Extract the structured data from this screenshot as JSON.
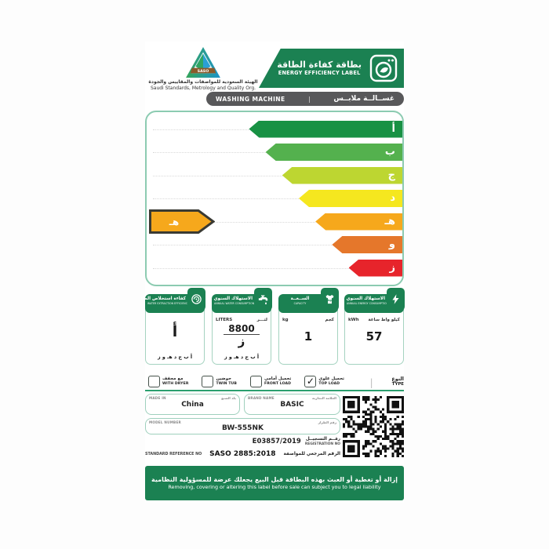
{
  "header": {
    "logo_text": "SASO",
    "org_name_ar": "الهيئة السعودية للمواصفات والمقاييس والجودة",
    "org_name_en": "Saudi Standards, Metrology and Quality Org.",
    "label_title_ar": "بطاقة كفاءة الطاقة",
    "label_title_en": "ENERGY EFFICIENCY LABEL"
  },
  "product_bar": {
    "en": "WASHING MACHINE",
    "divider": "|",
    "ar": "غســالــة ملابــس"
  },
  "rating_scale": {
    "grades": [
      {
        "letter": "أ",
        "color": "#189144",
        "length_pct": 60
      },
      {
        "letter": "ب",
        "color": "#54b14e",
        "length_pct": 53.5
      },
      {
        "letter": "ج",
        "color": "#bdd631",
        "length_pct": 47
      },
      {
        "letter": "د",
        "color": "#f5e71f",
        "length_pct": 40.5
      },
      {
        "letter": "هـ",
        "color": "#f6a81c",
        "length_pct": 34
      },
      {
        "letter": "و",
        "color": "#e5772b",
        "length_pct": 27.5
      },
      {
        "letter": "ز",
        "color": "#e7242b",
        "length_pct": 21
      }
    ],
    "current_rating": {
      "letter": "هـ",
      "row_index": 4,
      "color": "#f6a81c",
      "border": "#3a3a33"
    }
  },
  "metrics": {
    "cards": [
      {
        "title_ar": "كفاءة استخلاص الماء",
        "title_en": "WATER EXTRACTION EFFICIENCY",
        "icon": "spin-icon",
        "grade": "أ",
        "scale": "أ ب ج د هـ و ز"
      },
      {
        "title_ar": "الاستهلاك السنوي للماء",
        "title_en": "ANNUAL WATER CONSUMPTION",
        "icon": "faucet-icon",
        "unit_en": "LITERS",
        "unit_ar": "لتـــر",
        "value": "8800",
        "grade": "ز",
        "scale": "أ ب ج د هـ و ز"
      },
      {
        "title_ar": "الســعــة",
        "title_en": "CAPACITY",
        "icon": "shirt-icon",
        "unit_en": "kg",
        "unit_ar": "كجم",
        "value": "1"
      },
      {
        "title_ar": "الاستهلاك السنوي للطاقة",
        "title_en": "ANNUAL ENERGY CONSUMPTION",
        "icon": "lightning-icon",
        "unit_en": "kWh",
        "unit_ar": "كيلو واط ساعة",
        "value": "57"
      }
    ]
  },
  "type_row": {
    "label_ar": "النوع",
    "label_en": "TYPE",
    "divider": "|",
    "options": [
      {
        "ar": "مع مجفف",
        "en": "WITH DRYER",
        "mark": ""
      },
      {
        "ar": "حوضين",
        "en": "TWIN TUB",
        "mark": ""
      },
      {
        "ar": "تحميل أمامي",
        "en": "FRONT LOAD",
        "mark": ""
      },
      {
        "ar": "تحميل علوي",
        "en": "TOP LOAD",
        "mark": "✓"
      }
    ]
  },
  "product_info": {
    "made_in": {
      "label_en": "MADE IN",
      "label_ar": "بلد الصنع",
      "value": "China"
    },
    "brand": {
      "label_en": "BRAND NAME",
      "label_ar": "العلامة التجارية",
      "value": "BASIC"
    },
    "model": {
      "label_en": "MODEL NUMBER",
      "label_ar": "رقم الطراز",
      "value": "BW-555NK"
    },
    "registration": {
      "value": "E03857/2019",
      "label_ar": "رقــم التسجيــل",
      "label_en": "REGISTRATION NO"
    },
    "standard": {
      "label_en": "STANDARD REFERENCE NO",
      "value": "SASO 2885:2018",
      "label_ar": "الرقم المرجعي للمواصفة"
    }
  },
  "footer": {
    "warning_ar": "إزالة أو تغطية أو العبث بهذه البطاقة قبل البيع يجعلك عرضة للمسؤولية النظامية",
    "warning_en": "Removing, covering or altering this label before sale can subject you to legal liability"
  },
  "colors": {
    "brand_green": "#1b8152",
    "bar_gray": "#58585a",
    "chart_border": "#8ccbb1"
  }
}
